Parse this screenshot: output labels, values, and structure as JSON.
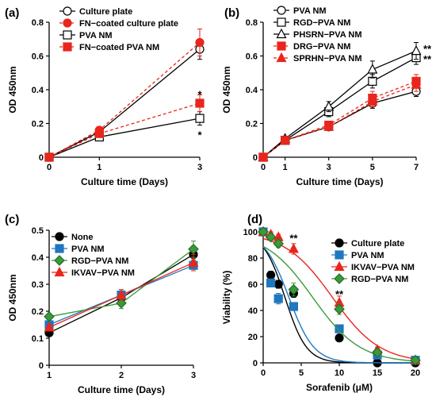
{
  "chart_data": [
    {
      "panel": "(a)",
      "type": "line",
      "xlabel": "Culture time (Days)",
      "ylabel": "OD 450nm",
      "xlim": [
        0,
        3
      ],
      "ylim": [
        0,
        0.8
      ],
      "xticks": [
        0,
        1,
        3
      ],
      "yticks": [
        0,
        0.2,
        0.4,
        0.6,
        0.8
      ],
      "legend_position": "top-left",
      "x": [
        0,
        1,
        3
      ],
      "series": [
        {
          "name": "Culture plate",
          "values": [
            0,
            0.15,
            0.64
          ],
          "errors": [
            0,
            0.015,
            0.06
          ],
          "color": "#000000",
          "marker": "circle-open",
          "dashed": false
        },
        {
          "name": "FN−coated culture plate",
          "values": [
            0,
            0.16,
            0.68
          ],
          "errors": [
            0,
            0.015,
            0.08
          ],
          "color": "#e8261c",
          "marker": "circle-filled",
          "dashed": true
        },
        {
          "name": "PVA NM",
          "values": [
            0,
            0.12,
            0.23
          ],
          "errors": [
            0,
            0.015,
            0.04
          ],
          "color": "#000000",
          "marker": "square-open",
          "dashed": false
        },
        {
          "name": "FN−coated PVA NM",
          "values": [
            0,
            0.14,
            0.32
          ],
          "errors": [
            0,
            0.015,
            0.05
          ],
          "color": "#e8261c",
          "marker": "square-filled",
          "dashed": true
        }
      ],
      "annotations": [
        {
          "text": "*",
          "x": 3,
          "y": 0.37
        },
        {
          "text": "*",
          "x": 3,
          "y": 0.13
        }
      ]
    },
    {
      "panel": "(b)",
      "type": "line",
      "xlabel": "Culture time (Days)",
      "ylabel": "OD 450nm",
      "xlim": [
        0,
        7
      ],
      "ylim": [
        0,
        0.8
      ],
      "xticks": [
        0,
        1,
        3,
        5,
        7
      ],
      "yticks": [
        0,
        0.2,
        0.4,
        0.6,
        0.8
      ],
      "legend_position": "top-left",
      "x": [
        0,
        1,
        3,
        5,
        7
      ],
      "series": [
        {
          "name": "PVA NM",
          "values": [
            0,
            0.1,
            0.18,
            0.32,
            0.39
          ],
          "errors": [
            0,
            0.01,
            0.02,
            0.03,
            0.03
          ],
          "color": "#000000",
          "marker": "circle-open",
          "dashed": false
        },
        {
          "name": "RGD−PVA NM",
          "values": [
            0,
            0.1,
            0.27,
            0.45,
            0.59
          ],
          "errors": [
            0,
            0.01,
            0.03,
            0.04,
            0.04
          ],
          "color": "#000000",
          "marker": "square-open",
          "dashed": false
        },
        {
          "name": "PHSRN−PVA NM",
          "values": [
            0,
            0.11,
            0.3,
            0.52,
            0.63
          ],
          "errors": [
            0,
            0.01,
            0.03,
            0.05,
            0.05
          ],
          "color": "#000000",
          "marker": "triangle-open",
          "dashed": false
        },
        {
          "name": "DRG−PVA NM",
          "values": [
            0,
            0.1,
            0.19,
            0.35,
            0.45
          ],
          "errors": [
            0,
            0.01,
            0.02,
            0.04,
            0.04
          ],
          "color": "#e8261c",
          "marker": "square-filled",
          "dashed": true
        },
        {
          "name": "SPRHN−PVA NM",
          "values": [
            0,
            0.1,
            0.18,
            0.33,
            0.43
          ],
          "errors": [
            0,
            0.01,
            0.02,
            0.03,
            0.04
          ],
          "color": "#e8261c",
          "marker": "triangle-filled",
          "dashed": true
        }
      ],
      "annotations": [
        {
          "text": "**",
          "x": 7,
          "y": 0.64
        },
        {
          "text": "**",
          "x": 7,
          "y": 0.58
        }
      ]
    },
    {
      "panel": "(c)",
      "type": "line",
      "xlabel": "Culture time (Days)",
      "ylabel": "OD 450nm",
      "xlim": [
        1,
        3
      ],
      "ylim": [
        0,
        0.5
      ],
      "xticks": [
        1,
        2,
        3
      ],
      "yticks": [
        0,
        0.1,
        0.2,
        0.3,
        0.4,
        0.5
      ],
      "legend_position": "top-left",
      "x": [
        1,
        2,
        3
      ],
      "series": [
        {
          "name": "None",
          "values": [
            0.12,
            0.25,
            0.41
          ],
          "errors": [
            0.01,
            0.02,
            0.03
          ],
          "color": "#000000",
          "marker": "circle-filled"
        },
        {
          "name": "PVA NM",
          "values": [
            0.15,
            0.26,
            0.37
          ],
          "errors": [
            0.01,
            0.02,
            0.02
          ],
          "color": "#1f77c0",
          "marker": "square-filled"
        },
        {
          "name": "RGD−PVA NM",
          "values": [
            0.18,
            0.23,
            0.43
          ],
          "errors": [
            0.01,
            0.02,
            0.03
          ],
          "color": "#3a9a3a",
          "marker": "diamond-filled"
        },
        {
          "name": "IKVAV−PVA NM",
          "values": [
            0.14,
            0.26,
            0.38
          ],
          "errors": [
            0.01,
            0.02,
            0.03
          ],
          "color": "#e8261c",
          "marker": "triangle-filled"
        }
      ]
    },
    {
      "panel": "(d)",
      "type": "scatter",
      "xlabel": "Sorafenib (μM)",
      "ylabel": "Viability (%)",
      "xlim": [
        0,
        20
      ],
      "ylim": [
        0,
        100
      ],
      "xticks": [
        0,
        5,
        10,
        15,
        20
      ],
      "yticks": [
        0,
        20,
        40,
        60,
        80,
        100
      ],
      "legend_position": "top-right",
      "series": [
        {
          "name": "Culture plate",
          "x": [
            0,
            1,
            2,
            4,
            10,
            15,
            20
          ],
          "values": [
            100,
            67,
            60,
            53,
            19,
            0,
            0
          ],
          "errors": [
            0,
            3,
            3,
            3,
            2,
            0,
            0
          ],
          "fit": [
            100,
            1.1,
            0.22
          ],
          "color": "#000000",
          "marker": "circle-filled"
        },
        {
          "name": "PVA NM",
          "x": [
            0,
            1,
            2,
            4,
            10,
            15,
            20
          ],
          "values": [
            100,
            61,
            49,
            43,
            26,
            6,
            2
          ],
          "errors": [
            0,
            3,
            4,
            3,
            3,
            1,
            1
          ],
          "fit": [
            100,
            1.3,
            0.19
          ],
          "color": "#1f77c0",
          "marker": "square-filled"
        },
        {
          "name": "IKVAV−PVA NM",
          "x": [
            0,
            1,
            2,
            4,
            10,
            15,
            20
          ],
          "values": [
            100,
            98,
            96,
            87,
            46,
            10,
            2
          ],
          "errors": [
            0,
            2,
            2,
            4,
            5,
            2,
            1
          ],
          "fit": [
            100,
            3.5,
            0.1
          ],
          "color": "#e8261c",
          "marker": "triangle-filled"
        },
        {
          "name": "RGD−PVA NM",
          "x": [
            0,
            1,
            2,
            4,
            10,
            15,
            20
          ],
          "values": [
            100,
            96,
            91,
            56,
            41,
            8,
            2
          ],
          "errors": [
            0,
            2,
            3,
            5,
            4,
            2,
            1
          ],
          "fit": [
            100,
            2.5,
            0.1
          ],
          "color": "#3a9a3a",
          "marker": "diamond-filled"
        }
      ],
      "annotations": [
        {
          "text": "**",
          "x": 4,
          "y": 95
        },
        {
          "text": "**",
          "x": 10,
          "y": 52
        }
      ]
    }
  ]
}
